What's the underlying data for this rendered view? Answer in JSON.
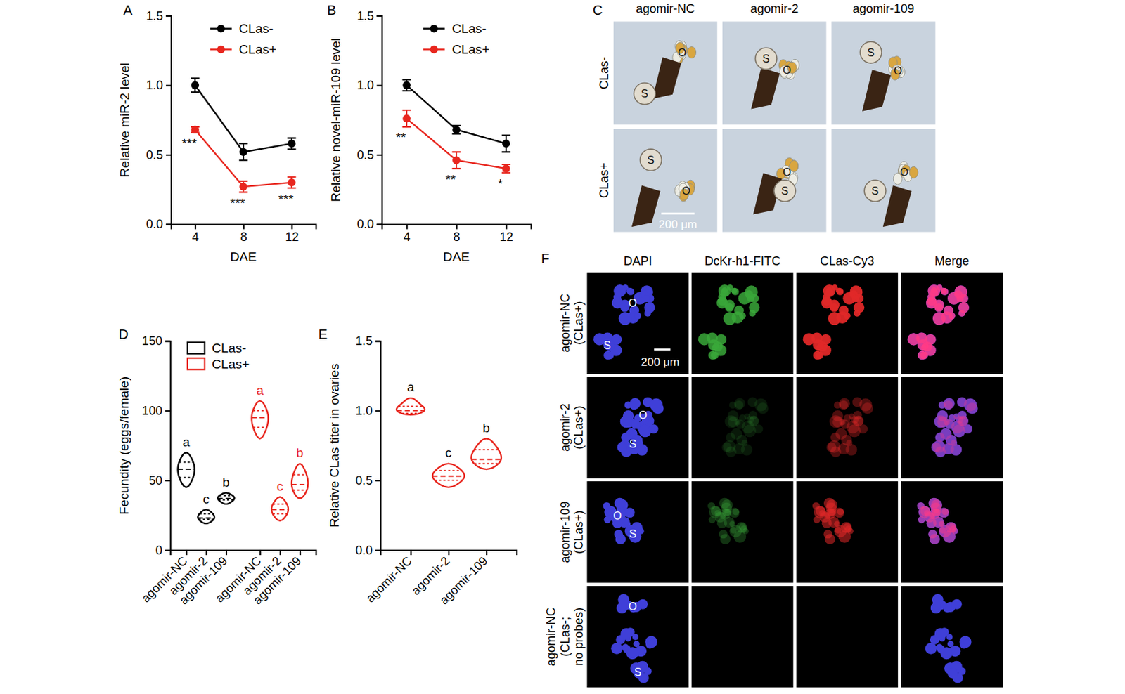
{
  "chart_data": [
    {
      "panel_label": "A",
      "type": "line",
      "x_label": "DAE",
      "y_label": "Relative miR-2 level",
      "x": [
        4,
        8,
        12
      ],
      "xlim": [
        2,
        14
      ],
      "xticks": [
        4,
        8,
        12
      ],
      "ylim": [
        0,
        1.5
      ],
      "yticks": [
        {
          "value": 0,
          "label": "0.0"
        },
        {
          "value": 0.5,
          "label": "0.5"
        },
        {
          "value": 1,
          "label": "1.0"
        },
        {
          "value": 1.5,
          "label": "1.5"
        }
      ],
      "legend": "upper center",
      "series": [
        {
          "name": "CLas-",
          "color": "#000000",
          "marker": "circle",
          "values": [
            1.0,
            0.52,
            0.58
          ],
          "errors": [
            0.05,
            0.06,
            0.04
          ]
        },
        {
          "name": "CLas+",
          "color": "#e8261e",
          "marker": "circle",
          "values": [
            0.68,
            0.27,
            0.3
          ],
          "errors": [
            0.02,
            0.04,
            0.04
          ]
        }
      ],
      "annotations": [
        "***",
        "***",
        "***"
      ]
    },
    {
      "panel_label": "B",
      "type": "line",
      "x_label": "DAE",
      "y_label": "Relative novel-miR-109 level",
      "x": [
        4,
        8,
        12
      ],
      "xlim": [
        2,
        14
      ],
      "xticks": [
        4,
        8,
        12
      ],
      "ylim": [
        0,
        1.5
      ],
      "yticks": [
        {
          "value": 0,
          "label": "0.0"
        },
        {
          "value": 0.5,
          "label": "0.5"
        },
        {
          "value": 1,
          "label": "1.0"
        },
        {
          "value": 1.5,
          "label": "1.5"
        }
      ],
      "legend": "upper center",
      "series": [
        {
          "name": "CLas-",
          "color": "#000000",
          "marker": "circle",
          "values": [
            1.0,
            0.68,
            0.58
          ],
          "errors": [
            0.04,
            0.03,
            0.06
          ]
        },
        {
          "name": "CLas+",
          "color": "#e8261e",
          "marker": "circle",
          "values": [
            0.76,
            0.46,
            0.4
          ],
          "errors": [
            0.06,
            0.06,
            0.03
          ]
        }
      ],
      "annotations": [
        "**",
        "**",
        "*"
      ]
    },
    {
      "panel_label": "D",
      "type": "violin",
      "y_label": "Fecundity (eggs/female)",
      "categories": [
        "agomir-NC",
        "agomir-2",
        "agomir-109",
        "agomir-NC",
        "agomir-2",
        "agomir-109"
      ],
      "ylim": [
        0,
        150
      ],
      "yticks": [
        0,
        50,
        100,
        150
      ],
      "legend": "upper left",
      "series": [
        {
          "name": "CLas-",
          "color": "#000000",
          "values": [
            [
              45,
              52,
              58,
              63,
              70
            ],
            [
              19,
              22,
              23,
              26,
              29
            ],
            [
              33,
              36,
              37,
              39,
              41
            ],
            null,
            null,
            null
          ],
          "letters": [
            "a",
            "c",
            "b",
            null,
            null,
            null
          ]
        },
        {
          "name": "CLas+",
          "color": "#e8261e",
          "values": [
            null,
            null,
            null,
            [
              80,
              88,
              95,
              100,
              107
            ],
            [
              21,
              26,
              29,
              33,
              38
            ],
            [
              37,
              43,
              47,
              54,
              62
            ]
          ],
          "letters": [
            null,
            null,
            null,
            "a",
            "c",
            "b"
          ]
        }
      ]
    },
    {
      "panel_label": "E",
      "type": "violin",
      "y_label": "Relative CLas titer in ovaries",
      "categories": [
        "agomir-NC",
        "agomir-2",
        "agomir-109"
      ],
      "ylim": [
        0,
        1.5
      ],
      "yticks": [
        {
          "value": 0,
          "label": "0.0"
        },
        {
          "value": 0.5,
          "label": "0.5"
        },
        {
          "value": 1,
          "label": "1.0"
        },
        {
          "value": 1.5,
          "label": "1.5"
        }
      ],
      "series": [
        {
          "color": "#e8261e",
          "values": [
            [
              0.97,
              0.98,
              1.0,
              1.03,
              1.09
            ],
            [
              0.45,
              0.5,
              0.53,
              0.57,
              0.62
            ],
            [
              0.58,
              0.62,
              0.65,
              0.72,
              0.8
            ]
          ],
          "letters": [
            "a",
            "c",
            "b"
          ]
        }
      ]
    }
  ],
  "image_panels": [
    {
      "panel_label": "C",
      "columns": [
        "agomir-NC",
        "agomir-2",
        "agomir-109"
      ],
      "rows": [
        "CLas-",
        "CLas+"
      ],
      "region_labels": [
        "S",
        "O"
      ],
      "scale_bar": "200 μm"
    },
    {
      "panel_label": "F",
      "columns": [
        "DAPI",
        "DcKr-h1-FITC",
        "CLas-Cy3",
        "Merge"
      ],
      "rows": [
        "agomir-NC (CLas+)",
        "agomir-2 (CLas+)",
        "agomir-109 (CLas+)",
        "agomir-NC (CLas-; no probes)"
      ],
      "region_labels": [
        "O",
        "S"
      ],
      "scale_bar": "200 μm"
    }
  ]
}
